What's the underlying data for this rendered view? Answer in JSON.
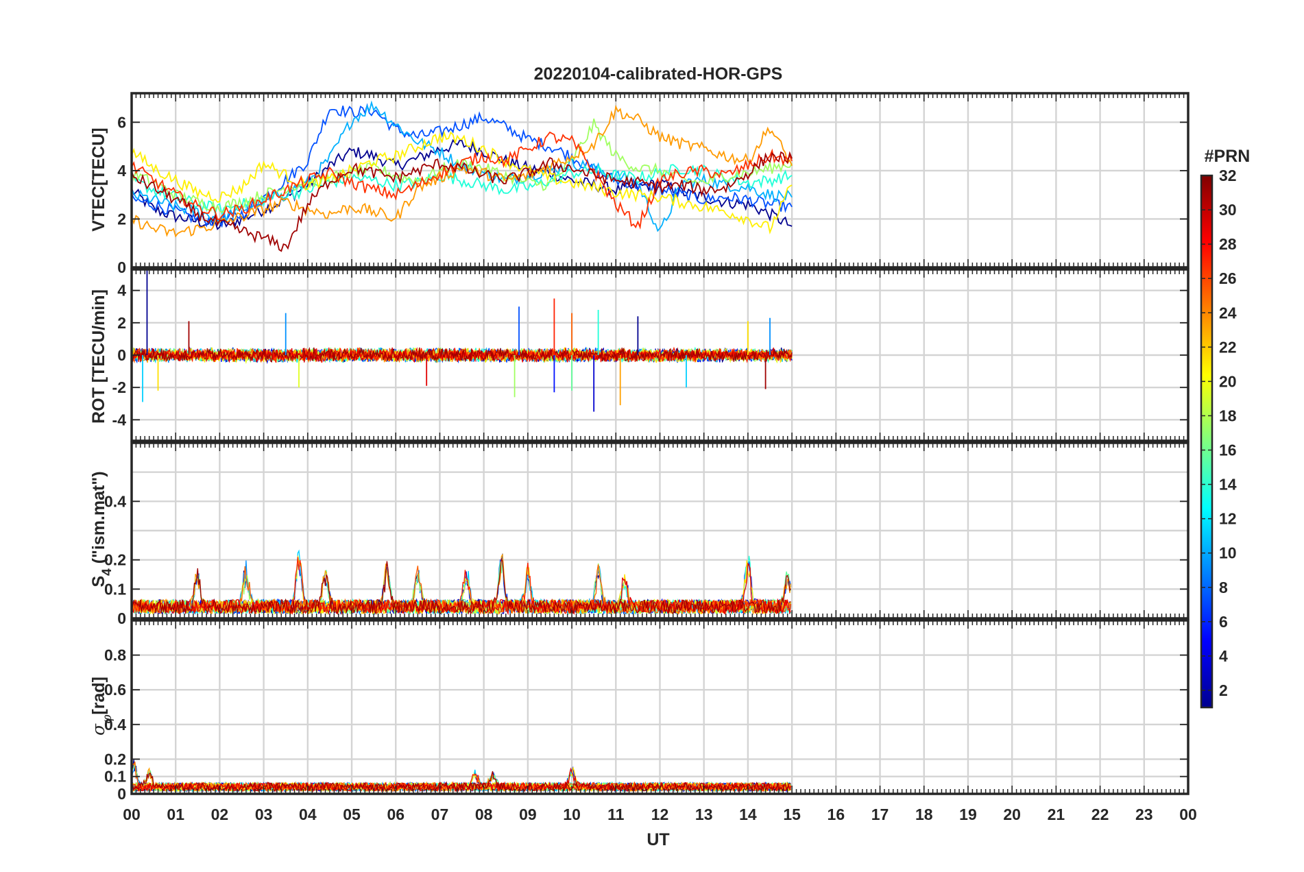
{
  "chart_data": [
    {
      "type": "line",
      "panel": "vtec",
      "title": "20220104-calibrated-HOR-GPS",
      "ylabel": "VTEC[TECU]",
      "xlim": [
        0,
        24
      ],
      "ylim": [
        0,
        7.2
      ],
      "yticks": [
        0,
        2,
        4,
        6
      ],
      "ytick_labels": [
        "0",
        "2",
        "4",
        "6"
      ],
      "grid": true,
      "data_coverage_hours": [
        0,
        15
      ],
      "note": "Multiple PRN traces, values mostly 1-7 TECU",
      "series": [
        {
          "prn": 1,
          "color": "#00008F",
          "x": [
            0,
            0.5,
            1.0,
            1.5,
            2.0,
            2.5,
            3.0,
            3.5,
            4.0,
            4.5,
            5.0,
            5.5,
            6.0,
            6.5,
            7.0,
            7.5,
            8.0,
            8.5,
            9.0,
            9.5,
            10.0,
            10.5,
            11.0,
            11.5,
            12.0,
            12.5,
            13.0,
            13.5,
            14.0,
            14.5,
            15.0
          ],
          "y": [
            3.2,
            2.4,
            2.1,
            1.9,
            1.7,
            2.0,
            2.4,
            2.8,
            3.4,
            4.2,
            4.8,
            4.6,
            4.2,
            4.5,
            4.9,
            5.1,
            4.8,
            4.4,
            4.1,
            3.9,
            3.6,
            3.4,
            3.2,
            3.3,
            3.5,
            3.1,
            2.9,
            2.7,
            2.6,
            2.2,
            1.7
          ]
        },
        {
          "prn": 6,
          "color": "#0050FF",
          "x": [
            0,
            0.5,
            1.0,
            1.5,
            2.0,
            2.5,
            3.0,
            3.5,
            4.0,
            4.5,
            5.0,
            5.5,
            6.0,
            6.5,
            7.0,
            7.5,
            8.0,
            8.5,
            9.0,
            9.5,
            10.0,
            10.5,
            11.0,
            11.5,
            12.0,
            12.5,
            13.0,
            13.5,
            14.0,
            14.5,
            15.0
          ],
          "y": [
            2.8,
            2.6,
            2.3,
            2.0,
            1.9,
            2.2,
            2.9,
            3.6,
            4.4,
            6.6,
            6.4,
            6.5,
            5.7,
            5.4,
            5.6,
            5.9,
            6.2,
            5.8,
            5.3,
            5.0,
            4.6,
            4.0,
            3.6,
            3.4,
            3.2,
            3.0,
            2.8,
            2.9,
            2.8,
            2.6,
            2.5
          ]
        },
        {
          "prn": 11,
          "color": "#00B0FF",
          "x": [
            0,
            0.5,
            1.0,
            1.5,
            2.0,
            2.5,
            3.0,
            3.5,
            4.0,
            4.5,
            5.0,
            5.5,
            6.0,
            6.5,
            7.0,
            7.5,
            8.0,
            8.5,
            9.0,
            9.5,
            10.0,
            10.5,
            11.0,
            11.5,
            12.0,
            12.5,
            13.0,
            13.5,
            14.0,
            14.5,
            15.0
          ],
          "y": [
            3.0,
            2.8,
            2.5,
            2.3,
            2.0,
            2.4,
            2.7,
            3.1,
            3.5,
            4.5,
            6.1,
            6.7,
            5.9,
            5.2,
            4.8,
            4.2,
            3.9,
            3.6,
            3.8,
            4.0,
            4.3,
            4.1,
            3.8,
            3.5,
            1.4,
            3.5,
            3.6,
            3.4,
            3.3,
            3.0,
            2.9
          ]
        },
        {
          "prn": 15,
          "color": "#20FFD8",
          "x": [
            0,
            0.5,
            1.0,
            1.5,
            2.0,
            2.5,
            3.0,
            3.5,
            4.0,
            4.5,
            5.0,
            5.5,
            6.0,
            6.5,
            7.0,
            7.5,
            8.0,
            8.5,
            9.0,
            9.5,
            10.0,
            10.5,
            11.0,
            11.5,
            12.0,
            12.5,
            13.0,
            13.5,
            14.0,
            14.5,
            15.0
          ],
          "y": [
            3.6,
            3.2,
            2.9,
            2.6,
            2.4,
            2.6,
            2.8,
            3.0,
            3.2,
            3.5,
            3.7,
            3.6,
            3.4,
            3.5,
            3.8,
            3.6,
            3.4,
            3.2,
            3.3,
            3.6,
            3.9,
            4.0,
            3.8,
            3.7,
            3.9,
            4.1,
            4.0,
            3.7,
            3.5,
            3.6,
            3.8
          ]
        },
        {
          "prn": 18,
          "color": "#A0FF60",
          "x": [
            0,
            0.5,
            1.0,
            1.5,
            2.0,
            2.5,
            3.0,
            3.5,
            4.0,
            4.5,
            5.0,
            5.5,
            6.0,
            6.5,
            7.0,
            7.5,
            8.0,
            8.5,
            9.0,
            9.5,
            10.0,
            10.5,
            11.0,
            11.5,
            12.0,
            12.5,
            13.0,
            13.5,
            14.0,
            14.5,
            15.0
          ],
          "y": [
            3.9,
            3.5,
            3.0,
            2.7,
            2.5,
            2.7,
            3.0,
            3.3,
            3.5,
            3.7,
            3.9,
            4.1,
            3.8,
            3.6,
            4.0,
            4.3,
            4.1,
            3.8,
            3.5,
            3.4,
            4.4,
            5.9,
            4.6,
            4.1,
            4.0,
            3.6,
            3.5,
            3.8,
            3.9,
            4.1,
            4.3
          ]
        },
        {
          "prn": 20,
          "color": "#FFF000",
          "x": [
            0,
            0.5,
            1.0,
            1.5,
            2.0,
            2.5,
            3.0,
            3.5,
            4.0,
            4.5,
            5.0,
            5.5,
            6.0,
            6.5,
            7.0,
            7.5,
            8.0,
            8.5,
            9.0,
            9.5,
            10.0,
            10.5,
            11.0,
            11.5,
            12.0,
            12.5,
            13.0,
            13.5,
            14.0,
            14.5,
            15.0
          ],
          "y": [
            4.8,
            4.1,
            3.6,
            3.1,
            2.9,
            3.3,
            4.3,
            3.8,
            3.4,
            3.6,
            4.0,
            4.4,
            4.6,
            5.0,
            5.4,
            5.3,
            4.9,
            4.4,
            4.0,
            3.7,
            3.5,
            3.3,
            3.1,
            3.0,
            2.9,
            2.7,
            2.5,
            2.3,
            2.0,
            1.6,
            3.4
          ]
        },
        {
          "prn": 23,
          "color": "#FF9A00",
          "x": [
            0,
            0.5,
            1.0,
            1.5,
            2.0,
            2.5,
            3.0,
            3.5,
            4.0,
            4.5,
            5.0,
            5.5,
            6.0,
            6.5,
            7.0,
            7.5,
            8.0,
            8.5,
            9.0,
            9.5,
            10.0,
            10.5,
            11.0,
            11.5,
            12.0,
            12.5,
            13.0,
            13.5,
            14.0,
            14.5,
            15.0
          ],
          "y": [
            2.0,
            1.6,
            1.4,
            1.6,
            1.8,
            2.1,
            2.4,
            2.7,
            2.4,
            2.2,
            2.5,
            2.3,
            2.0,
            3.3,
            3.7,
            4.1,
            3.9,
            3.6,
            3.8,
            4.2,
            4.6,
            5.1,
            6.5,
            6.1,
            5.4,
            5.1,
            4.9,
            4.6,
            4.4,
            5.8,
            4.2
          ]
        },
        {
          "prn": 27,
          "color": "#FF3000",
          "x": [
            0,
            0.5,
            1.0,
            1.5,
            2.0,
            2.5,
            3.0,
            3.5,
            4.0,
            4.5,
            5.0,
            5.5,
            6.0,
            6.5,
            7.0,
            7.5,
            8.0,
            8.5,
            9.0,
            9.5,
            10.0,
            10.5,
            11.0,
            11.5,
            12.0,
            12.5,
            13.0,
            13.5,
            14.0,
            14.5,
            15.0
          ],
          "y": [
            4.2,
            3.6,
            3.0,
            2.5,
            2.2,
            2.4,
            2.8,
            3.2,
            3.6,
            3.9,
            3.5,
            3.2,
            3.0,
            3.4,
            3.9,
            4.3,
            4.6,
            4.4,
            4.9,
            5.4,
            5.2,
            4.0,
            2.6,
            1.7,
            3.6,
            3.9,
            4.0,
            3.8,
            4.2,
            4.6,
            4.4
          ]
        },
        {
          "prn": 31,
          "color": "#A00000",
          "x": [
            0,
            0.5,
            1.0,
            1.5,
            2.0,
            2.5,
            3.0,
            3.5,
            4.0,
            4.5,
            5.0,
            5.5,
            6.0,
            6.5,
            7.0,
            7.5,
            8.0,
            8.5,
            9.0,
            9.5,
            10.0,
            10.5,
            11.0,
            11.5,
            12.0,
            12.5,
            13.0,
            13.5,
            14.0,
            14.5,
            15.0
          ],
          "y": [
            3.8,
            3.3,
            2.8,
            2.2,
            1.8,
            1.5,
            1.2,
            0.8,
            2.6,
            3.6,
            4.1,
            3.9,
            3.7,
            4.0,
            4.3,
            4.1,
            3.8,
            3.6,
            3.9,
            4.3,
            4.1,
            3.8,
            3.6,
            3.5,
            3.3,
            3.4,
            3.2,
            3.3,
            3.9,
            4.6,
            4.5
          ]
        }
      ]
    },
    {
      "type": "line",
      "panel": "rot",
      "ylabel": "ROT [TECU/min]",
      "xlim": [
        0,
        24
      ],
      "ylim": [
        -5.3,
        5.3
      ],
      "yticks": [
        -4,
        -2,
        0,
        2,
        4
      ],
      "ytick_labels": [
        "-4",
        "-2",
        "0",
        "2",
        "4"
      ],
      "grid": true,
      "data_coverage_hours": [
        0,
        15
      ],
      "typical_amplitude": 0.3,
      "spikes": [
        {
          "t": 0.35,
          "v": 5.3
        },
        {
          "t": 0.25,
          "v": -2.9
        },
        {
          "t": 0.6,
          "v": -2.2
        },
        {
          "t": 1.3,
          "v": 2.1
        },
        {
          "t": 3.5,
          "v": 2.6
        },
        {
          "t": 3.8,
          "v": -2.0
        },
        {
          "t": 6.7,
          "v": -1.9
        },
        {
          "t": 8.8,
          "v": 3.0
        },
        {
          "t": 8.7,
          "v": -2.6
        },
        {
          "t": 9.6,
          "v": 3.5
        },
        {
          "t": 9.6,
          "v": -2.3
        },
        {
          "t": 10.0,
          "v": -2.2
        },
        {
          "t": 10.0,
          "v": 2.6
        },
        {
          "t": 10.5,
          "v": -3.5
        },
        {
          "t": 10.6,
          "v": 2.8
        },
        {
          "t": 11.1,
          "v": -3.1
        },
        {
          "t": 11.5,
          "v": 2.4
        },
        {
          "t": 12.6,
          "v": -2.0
        },
        {
          "t": 14.0,
          "v": 2.1
        },
        {
          "t": 14.4,
          "v": -2.1
        },
        {
          "t": 14.5,
          "v": 2.3
        }
      ]
    },
    {
      "type": "line",
      "panel": "s4",
      "ylabel_main": "S",
      "ylabel_sub": "4",
      "ylabel_tail": " (\"ism.mat\")",
      "xlim": [
        0,
        24
      ],
      "ylim": [
        0,
        0.6
      ],
      "yticks": [
        0,
        0.1,
        0.2,
        0.4
      ],
      "ytick_labels": [
        "0",
        "0.1",
        "0.2",
        "0.4"
      ],
      "grid_values": [
        0.1,
        0.2,
        0.3,
        0.4,
        0.5
      ],
      "data_coverage_hours": [
        0,
        15
      ],
      "typical_level": 0.04,
      "peaks": [
        {
          "t": 1.5,
          "v": 0.17
        },
        {
          "t": 2.6,
          "v": 0.18
        },
        {
          "t": 3.8,
          "v": 0.25
        },
        {
          "t": 4.4,
          "v": 0.18
        },
        {
          "t": 5.8,
          "v": 0.19
        },
        {
          "t": 6.5,
          "v": 0.19
        },
        {
          "t": 7.6,
          "v": 0.18
        },
        {
          "t": 8.4,
          "v": 0.22
        },
        {
          "t": 9.0,
          "v": 0.17
        },
        {
          "t": 10.6,
          "v": 0.19
        },
        {
          "t": 11.2,
          "v": 0.15
        },
        {
          "t": 14.0,
          "v": 0.22
        },
        {
          "t": 14.9,
          "v": 0.16
        }
      ]
    },
    {
      "type": "line",
      "panel": "sigma",
      "ylabel_sub": "φ",
      "ylabel_tail": "[rad]",
      "xlim": [
        0,
        24
      ],
      "ylim": [
        0,
        1
      ],
      "yticks": [
        0,
        0.1,
        0.2,
        0.4,
        0.6,
        0.8
      ],
      "ytick_labels": [
        "0",
        "0.1",
        "0.2",
        "0.4",
        "0.6",
        "0.8"
      ],
      "grid_values": [
        0.1,
        0.2,
        0.4,
        0.6,
        0.8,
        1.0
      ],
      "data_coverage_hours": [
        0,
        15
      ],
      "typical_level": 0.04,
      "peaks": [
        {
          "t": 0.05,
          "v": 0.19
        },
        {
          "t": 0.4,
          "v": 0.14
        },
        {
          "t": 7.8,
          "v": 0.14
        },
        {
          "t": 8.2,
          "v": 0.13
        },
        {
          "t": 10.0,
          "v": 0.15
        }
      ]
    }
  ],
  "xaxis": {
    "label": "UT",
    "ticks": [
      "00",
      "01",
      "02",
      "03",
      "04",
      "05",
      "06",
      "07",
      "08",
      "09",
      "10",
      "11",
      "12",
      "13",
      "14",
      "15",
      "16",
      "17",
      "18",
      "19",
      "20",
      "21",
      "22",
      "23",
      "00"
    ]
  },
  "colorbar": {
    "label": "#PRN",
    "range": [
      1,
      32
    ],
    "tick_labels": [
      "2",
      "4",
      "6",
      "8",
      "10",
      "12",
      "14",
      "16",
      "18",
      "20",
      "22",
      "24",
      "26",
      "28",
      "30",
      "32"
    ],
    "colormap": "jet"
  },
  "colors": {
    "axis": "#262626",
    "grid": "#D4D4D4",
    "prn_palette": [
      "#00008F",
      "#0000CF",
      "#0010FF",
      "#0050FF",
      "#0090FF",
      "#00D0FF",
      "#20FFD8",
      "#60FF98",
      "#A0FF60",
      "#E0FF20",
      "#FFE000",
      "#FFA000",
      "#FF6000",
      "#FF2000",
      "#E00000",
      "#A00000"
    ]
  }
}
